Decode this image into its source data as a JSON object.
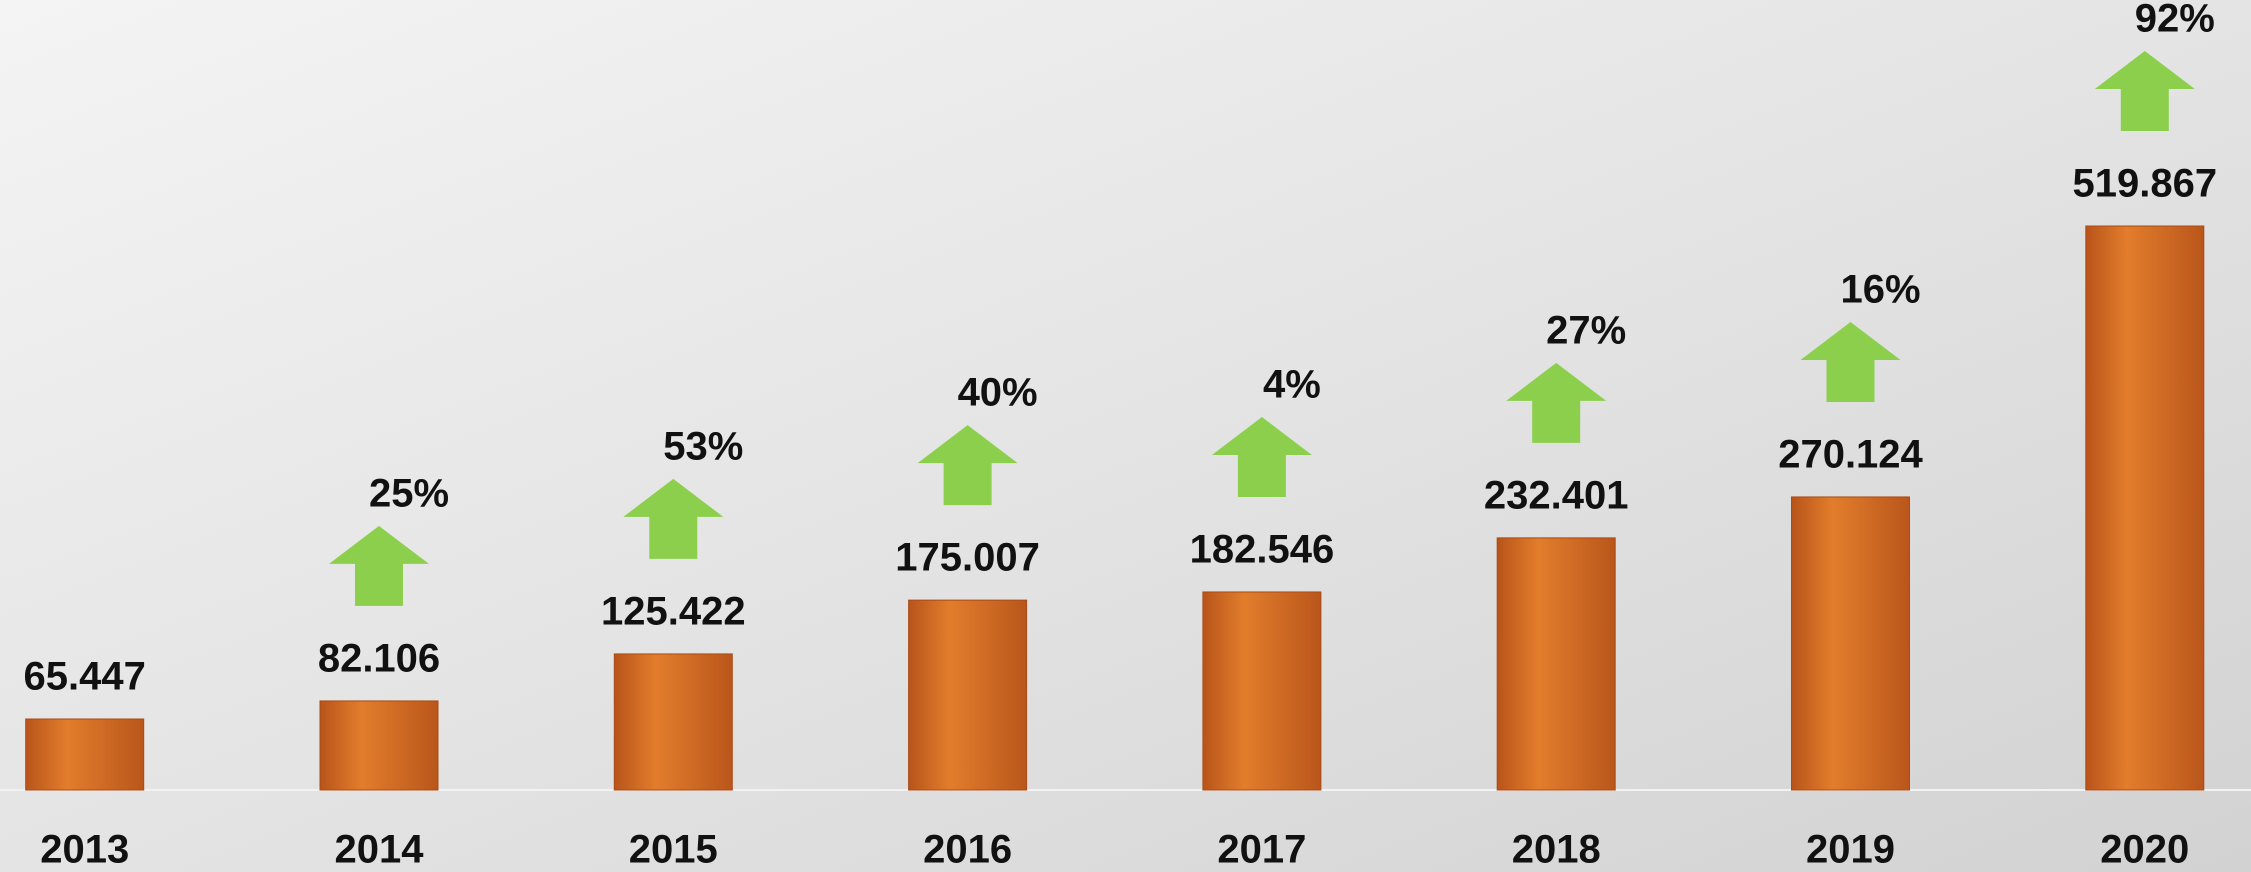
{
  "chart_data": {
    "type": "bar",
    "categories": [
      "2013",
      "2014",
      "2015",
      "2016",
      "2017",
      "2018",
      "2019",
      "2020"
    ],
    "values": [
      65.447,
      82.106,
      125.422,
      175.007,
      182.546,
      232.401,
      270.124,
      519.867
    ],
    "color": "#d66f22",
    "growth": {
      "color": "#8ccf4d",
      "values": [
        null,
        25,
        53,
        40,
        4,
        27,
        16,
        92
      ],
      "value_labels": [
        null,
        "25%",
        "53%",
        "40%",
        "4%",
        "27%",
        "16%",
        "92%"
      ]
    }
  }
}
